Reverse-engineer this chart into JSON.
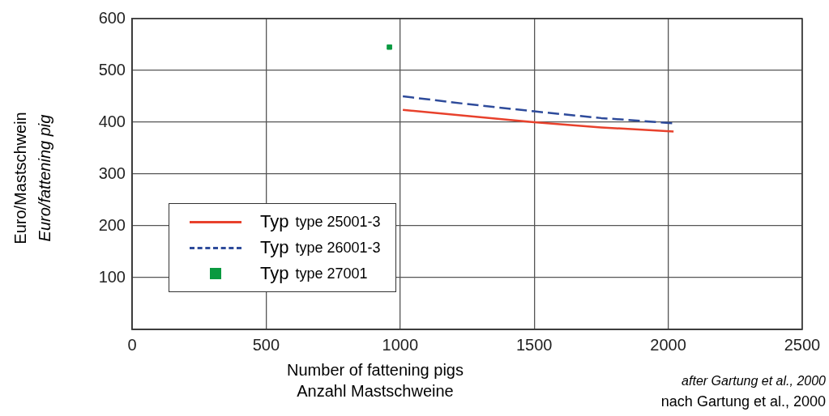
{
  "chart_data": {
    "type": "line",
    "xlabel": "Number of fattening pigs\nAnzahl Mastschweine",
    "ylabel": "Euro/Mastschwein\nEuro/fattening pig",
    "annotations": [
      "after Gartung et al., 2000",
      "nach Gartung et al., 2000"
    ],
    "series": [
      {
        "name": "Typ type 25001-3",
        "type": "line",
        "line_style": "solid",
        "color": "#e8412c",
        "x": [
          1010,
          1250,
          1500,
          1750,
          2020
        ],
        "values": [
          424,
          412,
          400,
          390,
          382
        ]
      },
      {
        "name": "Typ type 26001-3",
        "type": "line",
        "line_style": "dashed",
        "color": "#2e4b9b",
        "x": [
          1010,
          1250,
          1500,
          1750,
          2020
        ],
        "values": [
          450,
          435,
          421,
          408,
          398
        ]
      },
      {
        "name": "Typ type 27001",
        "type": "scatter",
        "marker": "square",
        "color": "#0a9a40",
        "x": [
          960
        ],
        "values": [
          545
        ]
      }
    ],
    "xlim": [
      0,
      2500
    ],
    "xticks": [
      0,
      500,
      1000,
      1500,
      2000,
      2500
    ],
    "ylim": [
      0,
      600
    ],
    "yticks": [
      {
        "value": 0,
        "label": null
      },
      100,
      200,
      300,
      400,
      500,
      600
    ],
    "grid": true,
    "legend": "bottom left"
  }
}
